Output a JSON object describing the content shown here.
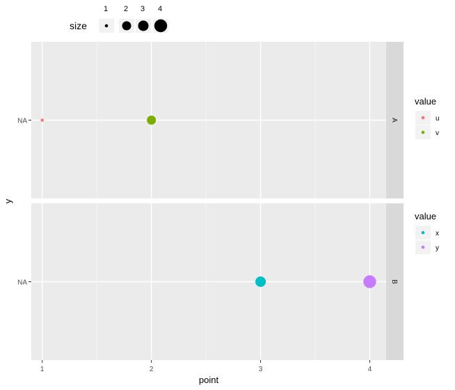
{
  "chart_data": {
    "type": "scatter",
    "xlabel": "point",
    "ylabel": "y",
    "x_ticks": [
      "1",
      "2",
      "3",
      "4"
    ],
    "xlim": [
      0.9,
      4.15
    ],
    "y_tick_label": "NA",
    "size_legend": {
      "title": "size",
      "levels": [
        {
          "label": "1",
          "value": 1
        },
        {
          "label": "2",
          "value": 2
        },
        {
          "label": "3",
          "value": 3
        },
        {
          "label": "4",
          "value": 4
        }
      ]
    },
    "facets": [
      {
        "label": "A",
        "legend_title": "value",
        "series": [
          {
            "name": "u",
            "color": "#F8766D",
            "points": [
              {
                "x": 1,
                "y": "NA",
                "size": 1
              }
            ]
          },
          {
            "name": "v",
            "color": "#7CAE00",
            "points": [
              {
                "x": 2,
                "y": "NA",
                "size": 2
              }
            ]
          }
        ]
      },
      {
        "label": "B",
        "legend_title": "value",
        "series": [
          {
            "name": "x",
            "color": "#00BFC4",
            "points": [
              {
                "x": 3,
                "y": "NA",
                "size": 3
              }
            ]
          },
          {
            "name": "y",
            "color": "#C77CFF",
            "points": [
              {
                "x": 4,
                "y": "NA",
                "size": 4
              }
            ]
          }
        ]
      }
    ],
    "panel_background": "#EBEBEB",
    "strip_background": "#D9D9D9",
    "grid": true
  }
}
